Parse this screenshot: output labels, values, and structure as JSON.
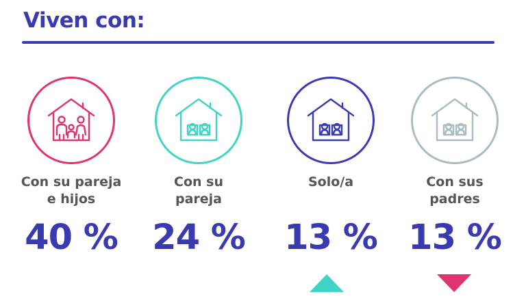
{
  "title": "Viven con:",
  "categories": [
    {
      "label": "Con su pareja\ne hijos",
      "value": "40 %",
      "color": "#e0336f",
      "icon": "family-house-icon"
    },
    {
      "label": "Con su\npareja",
      "value": "24 %",
      "color": "#3fd4c6",
      "icon": "couple-house-icon"
    },
    {
      "label": "Solo/a",
      "value": "13 %",
      "color": "#3a3ab0",
      "icon": "person-house-icon"
    },
    {
      "label": "Con sus\npadres",
      "value": "13 %",
      "color": "#a9bcc0",
      "icon": "parents-house-icon"
    }
  ],
  "indicators": [
    {
      "category": "Solo/a",
      "direction": "up",
      "color": "#3fd4c6"
    },
    {
      "category": "Con sus padres",
      "direction": "down",
      "color": "#e0336f"
    }
  ]
}
